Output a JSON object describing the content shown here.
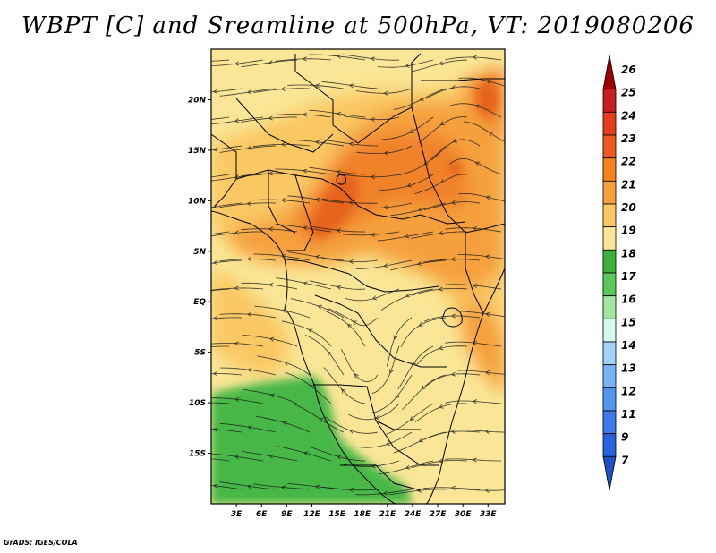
{
  "title": "WBPT [C] and Sreamline at 500hPa, VT: 2019080206",
  "credit": "GrADS: IGES/COLA",
  "map": {
    "lon_range": [
      0,
      35
    ],
    "lat_range": [
      -20,
      25
    ],
    "lat_ticks": [
      {
        "value": 20,
        "label": "20N"
      },
      {
        "value": 15,
        "label": "15N"
      },
      {
        "value": 10,
        "label": "10N"
      },
      {
        "value": 5,
        "label": "5N"
      },
      {
        "value": 0,
        "label": "EQ"
      },
      {
        "value": -5,
        "label": "5S"
      },
      {
        "value": -10,
        "label": "10S"
      },
      {
        "value": -15,
        "label": "15S"
      }
    ],
    "lon_ticks": [
      {
        "value": 3,
        "label": "3E"
      },
      {
        "value": 6,
        "label": "6E"
      },
      {
        "value": 9,
        "label": "9E"
      },
      {
        "value": 12,
        "label": "12E"
      },
      {
        "value": 15,
        "label": "15E"
      },
      {
        "value": 18,
        "label": "18E"
      },
      {
        "value": 21,
        "label": "21E"
      },
      {
        "value": 24,
        "label": "24E"
      },
      {
        "value": 27,
        "label": "27E"
      },
      {
        "value": 30,
        "label": "30E"
      },
      {
        "value": 33,
        "label": "33E"
      }
    ]
  },
  "colorbar": {
    "labels": [
      "26",
      "25",
      "24",
      "23",
      "22",
      "21",
      "20",
      "19",
      "18",
      "17",
      "16",
      "15",
      "14",
      "13",
      "12",
      "11",
      "9",
      "7"
    ],
    "colors": [
      "#a00000",
      "#c81e1e",
      "#e63c1e",
      "#f05a1e",
      "#f5821e",
      "#f5a03c",
      "#fac864",
      "#fae696",
      "#3cb43c",
      "#5ac85a",
      "#a0e6a0",
      "#d2faf0",
      "#a0d2fa",
      "#78b4f5",
      "#5096f0",
      "#3c78e6",
      "#2864dc",
      "#1e50c8"
    ]
  },
  "colors": {
    "low_green": "#46b846",
    "yellow": "#fae696",
    "light_orange": "#fac864",
    "orange": "#f5a03c",
    "dark_orange": "#f0822a",
    "red_orange": "#e6641e"
  }
}
